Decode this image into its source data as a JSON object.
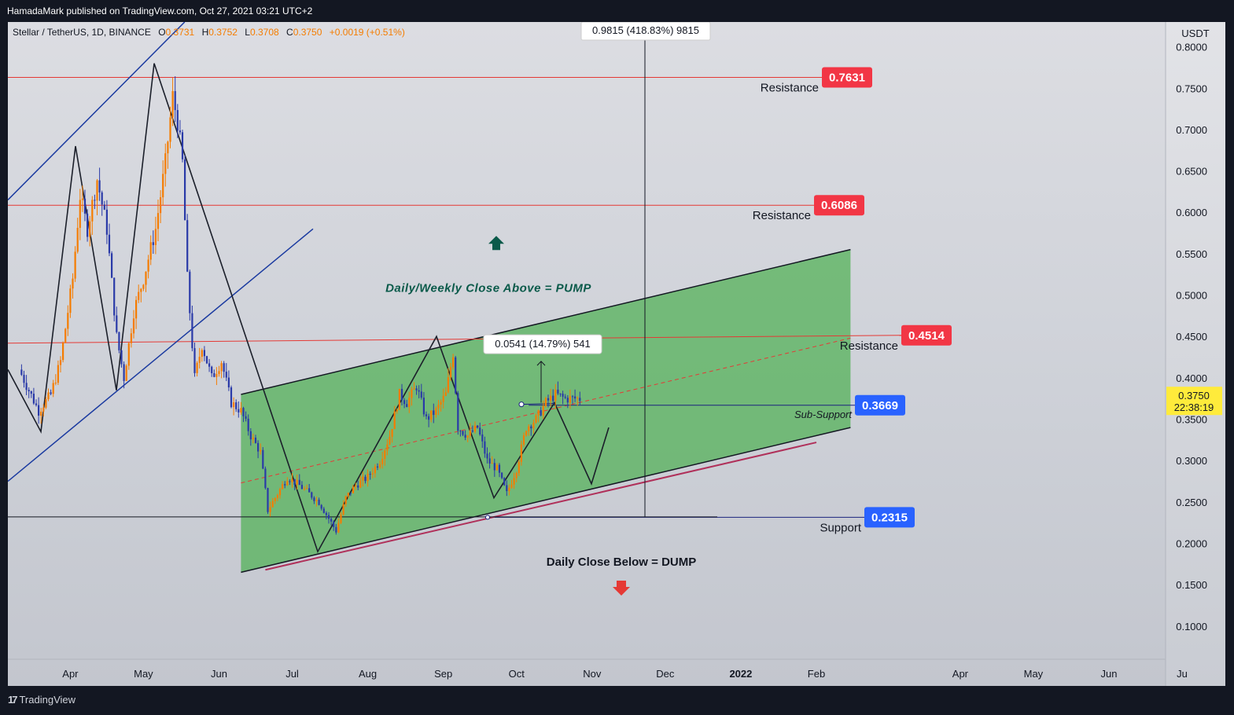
{
  "header": {
    "published": "HamadaMark published on TradingView.com, Oct 27, 2021 03:21 UTC+2"
  },
  "footer": {
    "brand": "TradingView"
  },
  "legend": {
    "symbol": "Stellar / TetherUS, 1D, BINANCE",
    "o_label": "O",
    "o_value": "0.3731",
    "h_label": "H",
    "h_value": "0.3752",
    "l_label": "L",
    "l_value": "0.3708",
    "c_label": "C",
    "c_value": "0.3750",
    "change": "+0.0019 (+0.51%)"
  },
  "colors": {
    "up": "#f57c00",
    "down": "#2a3aa8",
    "resistance_tag": "#f23645",
    "support_tag": "#2962ff",
    "channel_fill": "#4caf50",
    "price_tag": "#ffeb3b"
  },
  "chart_data": {
    "type": "candlestick",
    "symbol": "Stellar / TetherUS",
    "interval": "1D",
    "exchange": "BINANCE",
    "currency_label": "USDT",
    "ylim": [
      0.06,
      0.83
    ],
    "y_ticks": [
      "0.8000",
      "0.7500",
      "0.7000",
      "0.6500",
      "0.6000",
      "0.5500",
      "0.5000",
      "0.4500",
      "0.4000",
      "0.3500",
      "0.3000",
      "0.2500",
      "0.2000",
      "0.1500",
      "0.1000"
    ],
    "x_ticks": [
      {
        "label": "Apr",
        "date": "2021-04-01"
      },
      {
        "label": "May",
        "date": "2021-05-01"
      },
      {
        "label": "Jun",
        "date": "2021-06-01"
      },
      {
        "label": "Jul",
        "date": "2021-07-01"
      },
      {
        "label": "Aug",
        "date": "2021-08-01"
      },
      {
        "label": "Sep",
        "date": "2021-09-01"
      },
      {
        "label": "Oct",
        "date": "2021-10-01"
      },
      {
        "label": "Nov",
        "date": "2021-11-01"
      },
      {
        "label": "Dec",
        "date": "2021-12-01"
      },
      {
        "label": "2022",
        "date": "2022-01-01"
      },
      {
        "label": "Feb",
        "date": "2022-02-01"
      },
      {
        "label": "Apr",
        "date": "2022-04-01"
      },
      {
        "label": "May",
        "date": "2022-05-01"
      },
      {
        "label": "Jun",
        "date": "2022-06-01"
      },
      {
        "label": "Ju",
        "date": "2022-07-01"
      }
    ],
    "price_path": [
      [
        "2021-03-12",
        0.41
      ],
      [
        "2021-03-20",
        0.36
      ],
      [
        "2021-03-25",
        0.38
      ],
      [
        "2021-03-29",
        0.42
      ],
      [
        "2021-04-03",
        0.52
      ],
      [
        "2021-04-06",
        0.62
      ],
      [
        "2021-04-09",
        0.58
      ],
      [
        "2021-04-13",
        0.64
      ],
      [
        "2021-04-17",
        0.58
      ],
      [
        "2021-04-21",
        0.45
      ],
      [
        "2021-04-24",
        0.4
      ],
      [
        "2021-04-28",
        0.48
      ],
      [
        "2021-05-02",
        0.52
      ],
      [
        "2021-05-07",
        0.58
      ],
      [
        "2021-05-11",
        0.66
      ],
      [
        "2021-05-14",
        0.74
      ],
      [
        "2021-05-16",
        0.71
      ],
      [
        "2021-05-18",
        0.66
      ],
      [
        "2021-05-20",
        0.52
      ],
      [
        "2021-05-23",
        0.4
      ],
      [
        "2021-05-26",
        0.44
      ],
      [
        "2021-05-30",
        0.4
      ],
      [
        "2021-06-03",
        0.42
      ],
      [
        "2021-06-07",
        0.37
      ],
      [
        "2021-06-11",
        0.36
      ],
      [
        "2021-06-15",
        0.33
      ],
      [
        "2021-06-19",
        0.31
      ],
      [
        "2021-06-22",
        0.24
      ],
      [
        "2021-06-26",
        0.26
      ],
      [
        "2021-06-30",
        0.28
      ],
      [
        "2021-07-05",
        0.27
      ],
      [
        "2021-07-09",
        0.26
      ],
      [
        "2021-07-13",
        0.25
      ],
      [
        "2021-07-17",
        0.23
      ],
      [
        "2021-07-20",
        0.215
      ],
      [
        "2021-07-24",
        0.255
      ],
      [
        "2021-07-28",
        0.27
      ],
      [
        "2021-08-02",
        0.28
      ],
      [
        "2021-08-07",
        0.3
      ],
      [
        "2021-08-11",
        0.33
      ],
      [
        "2021-08-15",
        0.38
      ],
      [
        "2021-08-18",
        0.37
      ],
      [
        "2021-08-22",
        0.39
      ],
      [
        "2021-08-26",
        0.35
      ],
      [
        "2021-08-30",
        0.36
      ],
      [
        "2021-09-03",
        0.38
      ],
      [
        "2021-09-06",
        0.43
      ],
      [
        "2021-09-08",
        0.34
      ],
      [
        "2021-09-12",
        0.33
      ],
      [
        "2021-09-16",
        0.34
      ],
      [
        "2021-09-20",
        0.3
      ],
      [
        "2021-09-24",
        0.29
      ],
      [
        "2021-09-28",
        0.26
      ],
      [
        "2021-10-02",
        0.29
      ],
      [
        "2021-10-06",
        0.34
      ],
      [
        "2021-10-10",
        0.35
      ],
      [
        "2021-10-14",
        0.37
      ],
      [
        "2021-10-18",
        0.38
      ],
      [
        "2021-10-22",
        0.375
      ],
      [
        "2021-10-27",
        0.375
      ]
    ],
    "horizontal_levels": [
      {
        "label": "Resistance",
        "value": 0.7631,
        "tag": "0.7631"
      },
      {
        "label": "Resistance",
        "value": 0.6086,
        "tag": "0.6086"
      },
      {
        "label": "Resistance",
        "value": 0.4514,
        "tag": "0.4514"
      },
      {
        "label": "Sub-Support",
        "value": 0.3669,
        "tag": "0.3669"
      },
      {
        "label": "Support",
        "value": 0.2315,
        "tag": "0.2315"
      }
    ],
    "channel": {
      "upper": [
        [
          "2021-06-10",
          0.38
        ],
        [
          "2022-02-15",
          0.555
        ]
      ],
      "lower": [
        [
          "2021-06-10",
          0.165
        ],
        [
          "2022-02-15",
          0.34
        ]
      ],
      "midline": [
        [
          "2021-06-10",
          0.273
        ],
        [
          "2022-02-15",
          0.448
        ]
      ]
    },
    "annotations": {
      "top_measure": "0.9815 (418.83%) 9815",
      "mid_measure": "0.0541 (14.79%) 541",
      "pump_text": "Daily/Weekly Close Above = PUMP",
      "dump_text": "Daily Close Below = DUMP",
      "current_price": "0.3750",
      "countdown": "22:38:19"
    }
  }
}
